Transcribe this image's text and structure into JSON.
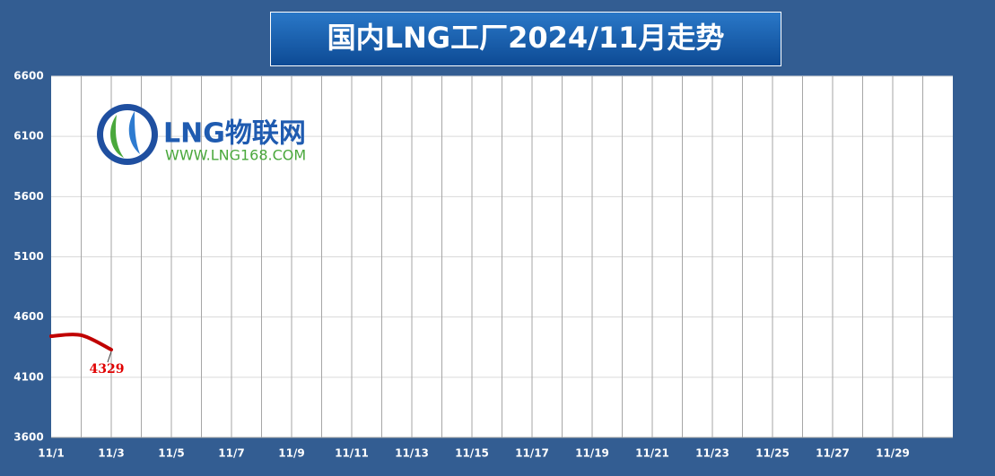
{
  "chart_data": {
    "type": "line",
    "title": "国内LNG工厂2024/11月走势",
    "logo": {
      "name": "LNG物联网",
      "url": "WWW.LNG168.COM"
    },
    "categories": [
      "11/1",
      null,
      "11/3",
      null,
      "11/5",
      null,
      "11/7",
      null,
      "11/9",
      null,
      "11/11",
      null,
      "11/13",
      null,
      "11/15",
      null,
      "11/17",
      null,
      "11/19",
      null,
      "11/21",
      null,
      "11/23",
      null,
      "11/25",
      null,
      "11/27",
      null,
      "11/29",
      null
    ],
    "series": [
      {
        "name": "国内LNG工厂",
        "color": "#c00000",
        "values": [
          4441,
          4449,
          4329,
          null,
          null,
          null,
          null,
          null,
          null,
          null,
          null,
          null,
          null,
          null,
          null,
          null,
          null,
          null,
          null,
          null,
          null,
          null,
          null,
          null,
          null,
          null,
          null,
          null,
          null,
          null
        ]
      }
    ],
    "ylim": [
      3600,
      6600
    ],
    "yticks": [
      3600,
      4100,
      4600,
      5100,
      5600,
      6100,
      6600
    ],
    "grid": true
  }
}
